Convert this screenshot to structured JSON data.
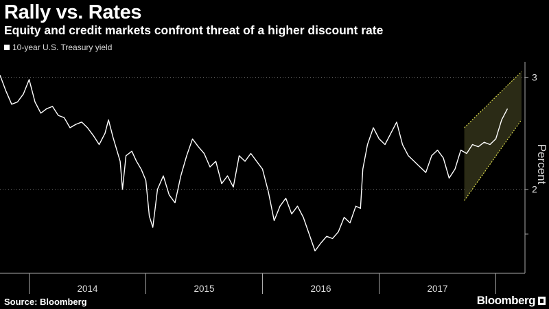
{
  "header": {
    "title": "Rally vs. Rates",
    "subtitle": "Equity and credit markets confront threat of a higher discount rate"
  },
  "footer": {
    "source": "Source: Bloomberg",
    "brand": "Bloomberg"
  },
  "colors": {
    "background": "#000000",
    "line": "#ffffff",
    "channel": "#d6d64a",
    "channel_fill": "#33331a",
    "grid": "#777777"
  },
  "chart_data": {
    "type": "line",
    "title": "Rally vs. Rates",
    "series": [
      {
        "name": "10-year U.S. Treasury yield",
        "points": [
          [
            2013.75,
            3.02
          ],
          [
            2013.8,
            2.88
          ],
          [
            2013.85,
            2.76
          ],
          [
            2013.9,
            2.78
          ],
          [
            2013.95,
            2.85
          ],
          [
            2014.0,
            2.98
          ],
          [
            2014.05,
            2.78
          ],
          [
            2014.1,
            2.68
          ],
          [
            2014.15,
            2.72
          ],
          [
            2014.2,
            2.74
          ],
          [
            2014.25,
            2.66
          ],
          [
            2014.3,
            2.64
          ],
          [
            2014.35,
            2.55
          ],
          [
            2014.4,
            2.58
          ],
          [
            2014.45,
            2.6
          ],
          [
            2014.5,
            2.55
          ],
          [
            2014.55,
            2.48
          ],
          [
            2014.6,
            2.4
          ],
          [
            2014.65,
            2.5
          ],
          [
            2014.68,
            2.62
          ],
          [
            2014.72,
            2.46
          ],
          [
            2014.78,
            2.25
          ],
          [
            2014.8,
            2.0
          ],
          [
            2014.83,
            2.3
          ],
          [
            2014.88,
            2.34
          ],
          [
            2014.92,
            2.25
          ],
          [
            2014.96,
            2.18
          ],
          [
            2015.0,
            2.08
          ],
          [
            2015.03,
            1.76
          ],
          [
            2015.06,
            1.66
          ],
          [
            2015.1,
            2.0
          ],
          [
            2015.15,
            2.12
          ],
          [
            2015.2,
            1.95
          ],
          [
            2015.25,
            1.88
          ],
          [
            2015.3,
            2.12
          ],
          [
            2015.35,
            2.3
          ],
          [
            2015.4,
            2.45
          ],
          [
            2015.45,
            2.38
          ],
          [
            2015.5,
            2.32
          ],
          [
            2015.55,
            2.2
          ],
          [
            2015.6,
            2.25
          ],
          [
            2015.65,
            2.05
          ],
          [
            2015.7,
            2.12
          ],
          [
            2015.75,
            2.02
          ],
          [
            2015.8,
            2.3
          ],
          [
            2015.85,
            2.25
          ],
          [
            2015.9,
            2.32
          ],
          [
            2015.95,
            2.25
          ],
          [
            2016.0,
            2.18
          ],
          [
            2016.05,
            1.98
          ],
          [
            2016.1,
            1.72
          ],
          [
            2016.15,
            1.85
          ],
          [
            2016.2,
            1.92
          ],
          [
            2016.25,
            1.78
          ],
          [
            2016.3,
            1.85
          ],
          [
            2016.35,
            1.75
          ],
          [
            2016.4,
            1.6
          ],
          [
            2016.45,
            1.45
          ],
          [
            2016.5,
            1.52
          ],
          [
            2016.55,
            1.58
          ],
          [
            2016.6,
            1.56
          ],
          [
            2016.65,
            1.62
          ],
          [
            2016.7,
            1.75
          ],
          [
            2016.75,
            1.7
          ],
          [
            2016.8,
            1.85
          ],
          [
            2016.84,
            1.83
          ],
          [
            2016.86,
            2.18
          ],
          [
            2016.9,
            2.4
          ],
          [
            2016.95,
            2.55
          ],
          [
            2017.0,
            2.45
          ],
          [
            2017.05,
            2.4
          ],
          [
            2017.1,
            2.5
          ],
          [
            2017.15,
            2.6
          ],
          [
            2017.2,
            2.4
          ],
          [
            2017.25,
            2.3
          ],
          [
            2017.3,
            2.25
          ],
          [
            2017.35,
            2.2
          ],
          [
            2017.4,
            2.15
          ],
          [
            2017.45,
            2.3
          ],
          [
            2017.5,
            2.35
          ],
          [
            2017.55,
            2.28
          ],
          [
            2017.6,
            2.1
          ],
          [
            2017.65,
            2.18
          ],
          [
            2017.7,
            2.35
          ],
          [
            2017.75,
            2.32
          ],
          [
            2017.8,
            2.4
          ],
          [
            2017.85,
            2.38
          ],
          [
            2017.9,
            2.42
          ],
          [
            2017.95,
            2.4
          ],
          [
            2018.0,
            2.45
          ],
          [
            2018.05,
            2.62
          ],
          [
            2018.1,
            2.72
          ]
        ]
      }
    ],
    "channel": {
      "upper": [
        [
          2017.73,
          2.55
        ],
        [
          2018.22,
          3.05
        ]
      ],
      "lower": [
        [
          2017.73,
          1.9
        ],
        [
          2018.22,
          2.62
        ]
      ]
    },
    "x_ticks": [
      {
        "label": "2014",
        "pos": 2014.5
      },
      {
        "label": "2015",
        "pos": 2015.5
      },
      {
        "label": "2016",
        "pos": 2016.5
      },
      {
        "label": "2017",
        "pos": 2017.5
      }
    ],
    "x_dividers": [
      2014.0,
      2015.0,
      2016.0,
      2017.0,
      2018.0
    ],
    "xlim": [
      2013.75,
      2018.25
    ],
    "y_ticks": [
      {
        "label": "3",
        "value": 3
      },
      {
        "label": "2",
        "value": 2
      }
    ],
    "y_minor_ticks": [
      1.6
    ],
    "ylim": [
      1.25,
      3.2
    ],
    "ylabel": "Percent",
    "xlabel": "",
    "legend": [
      "10-year U.S. Treasury yield"
    ],
    "grid": true
  }
}
